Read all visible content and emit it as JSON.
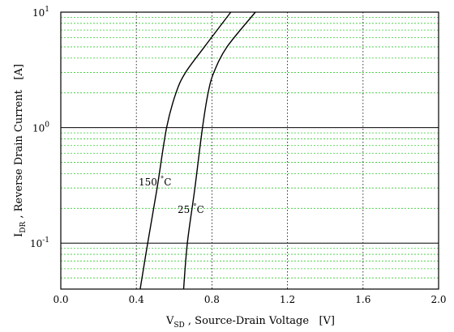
{
  "chart_data": {
    "type": "line",
    "title": "",
    "xlabel": {
      "main": "V",
      "sub": "SD",
      "rest": " , Source-Drain Voltage   [V]"
    },
    "ylabel": {
      "main": "I",
      "sub": "DR",
      "rest": " , Reverse Drain Current   [A]"
    },
    "xlim": [
      0.0,
      2.0
    ],
    "ylim": [
      0.04,
      10
    ],
    "yscale": "log",
    "x_ticks": [
      "0.0",
      "0.4",
      "0.8",
      "1.2",
      "1.6",
      "2.0"
    ],
    "y_ticks": [
      {
        "base": "10",
        "exp": "-1",
        "value": 0.1
      },
      {
        "base": "10",
        "exp": "0",
        "value": 1
      },
      {
        "base": "10",
        "exp": "1",
        "value": 10
      }
    ],
    "grid": {
      "major_y": true,
      "minor_y": true,
      "x": true
    },
    "series": [
      {
        "label": "150 °C",
        "label_base": "150",
        "label_unit": "°C",
        "points": [
          [
            0.42,
            0.04
          ],
          [
            0.46,
            0.1
          ],
          [
            0.51,
            0.3
          ],
          [
            0.56,
            1.0
          ],
          [
            0.61,
            2.0
          ],
          [
            0.66,
            3.0
          ],
          [
            0.76,
            5.0
          ],
          [
            0.9,
            10.0
          ]
        ]
      },
      {
        "label": "25 °C",
        "label_base": "25",
        "label_unit": "°C",
        "points": [
          [
            0.65,
            0.04
          ],
          [
            0.67,
            0.1
          ],
          [
            0.71,
            0.3
          ],
          [
            0.75,
            1.0
          ],
          [
            0.78,
            2.0
          ],
          [
            0.81,
            3.0
          ],
          [
            0.88,
            5.0
          ],
          [
            1.03,
            10.0
          ]
        ]
      }
    ],
    "colors": {
      "frame": "#000000",
      "major_grid": "#000000",
      "minor_grid": "#33cc33",
      "x_grid": "#000000",
      "line": "#000000"
    }
  }
}
